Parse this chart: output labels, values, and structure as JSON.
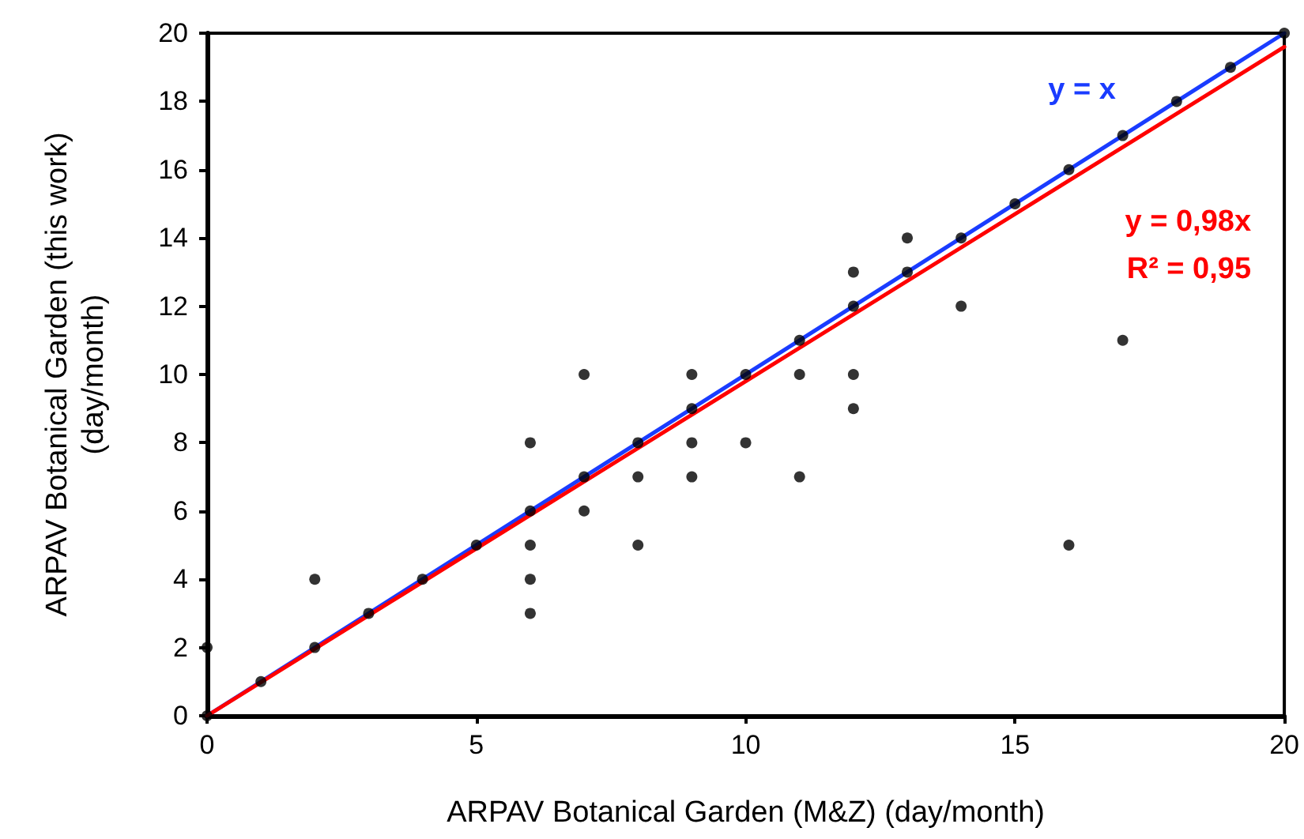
{
  "chart_data": {
    "type": "scatter",
    "xlabel": "ARPAV Botanical Garden (M&Z) (day/month)",
    "ylabel": "ARPAV Botanical Garden (this work)\n(day/month)",
    "xlim": [
      0,
      20
    ],
    "xticks": [
      0,
      5,
      10,
      15,
      20
    ],
    "ylim": [
      0,
      20
    ],
    "yticks": [
      0,
      2,
      4,
      6,
      8,
      10,
      12,
      14,
      16,
      18,
      20
    ],
    "grid": false,
    "legend": false,
    "marker": "circle",
    "series": [
      {
        "color": "#000000",
        "x": [
          0,
          0,
          1,
          2,
          2,
          3,
          4,
          5,
          6,
          6,
          6,
          6,
          6,
          7,
          7,
          7,
          8,
          8,
          8,
          9,
          9,
          9,
          9,
          10,
          10,
          11,
          11,
          11,
          12,
          12,
          12,
          12,
          13,
          13,
          14,
          14,
          15,
          16,
          16,
          17,
          17,
          18,
          19,
          20
        ],
        "values": [
          0,
          2,
          1,
          2,
          4,
          3,
          4,
          5,
          3,
          4,
          5,
          6,
          8,
          6,
          7,
          10,
          5,
          7,
          8,
          7,
          8,
          9,
          10,
          8,
          10,
          7,
          10,
          11,
          9,
          10,
          12,
          13,
          13,
          14,
          12,
          14,
          15,
          5,
          16,
          11,
          17,
          18,
          19,
          20
        ]
      },
      {
        "type": "line",
        "name": "y = x",
        "color": "#1a3cff",
        "x": [
          0,
          20
        ],
        "values": [
          0,
          20
        ],
        "marker": "none"
      },
      {
        "type": "line",
        "name": "y = 0,98x",
        "color": "#ff0000",
        "x": [
          0,
          20
        ],
        "values": [
          0,
          19.6
        ],
        "marker": "none"
      }
    ],
    "annotations": [
      "R² = 0,95"
    ]
  }
}
